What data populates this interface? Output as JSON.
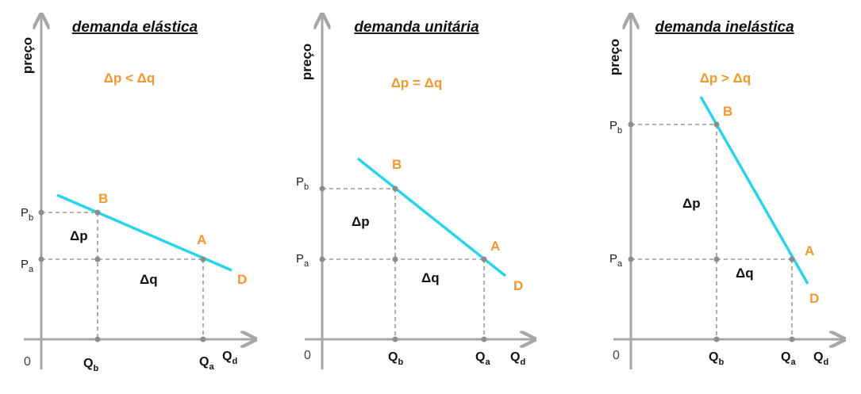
{
  "panels": [
    {
      "title": "demanda elástica",
      "ylabel": "preço",
      "relation": "Δp < Δq",
      "zero": "0",
      "price_labels": {
        "pb": "P",
        "pb_sub": "b",
        "pa": "P",
        "pa_sub": "a"
      },
      "quantity_labels": {
        "qb": "Q",
        "qb_sub": "b",
        "qa": "Q",
        "qa_sub": "a",
        "qd": "Q",
        "qd_sub": "d"
      },
      "point_labels": {
        "a": "A",
        "b": "B",
        "d": "D"
      },
      "delta_p": "Δp",
      "delta_q": "Δq"
    },
    {
      "title": "demanda unitária",
      "ylabel": "preço",
      "relation": "Δp = Δq",
      "zero": "0",
      "price_labels": {
        "pb": "P",
        "pb_sub": "b",
        "pa": "P",
        "pa_sub": "a"
      },
      "quantity_labels": {
        "qb": "Q",
        "qb_sub": "b",
        "qa": "Q",
        "qa_sub": "a",
        "qd": "Q",
        "qd_sub": "d"
      },
      "point_labels": {
        "a": "A",
        "b": "B",
        "d": "D"
      },
      "delta_p": "Δp",
      "delta_q": "Δq"
    },
    {
      "title": "demanda inelástica",
      "ylabel": "preço",
      "relation": "Δp > Δq",
      "zero": "0",
      "price_labels": {
        "pb": "P",
        "pb_sub": "b",
        "pa": "P",
        "pa_sub": "a"
      },
      "quantity_labels": {
        "qb": "Q",
        "qb_sub": "b",
        "qa": "Q",
        "qa_sub": "a",
        "qd": "Q",
        "qd_sub": "d"
      },
      "point_labels": {
        "a": "A",
        "b": "B",
        "d": "D"
      },
      "delta_p": "Δp",
      "delta_q": "Δq"
    }
  ],
  "colors": {
    "curve": "#2bd3e8",
    "labels_orange": "#f0982c",
    "axis": "#a6a6a6",
    "guides": "#9a9a9a"
  }
}
